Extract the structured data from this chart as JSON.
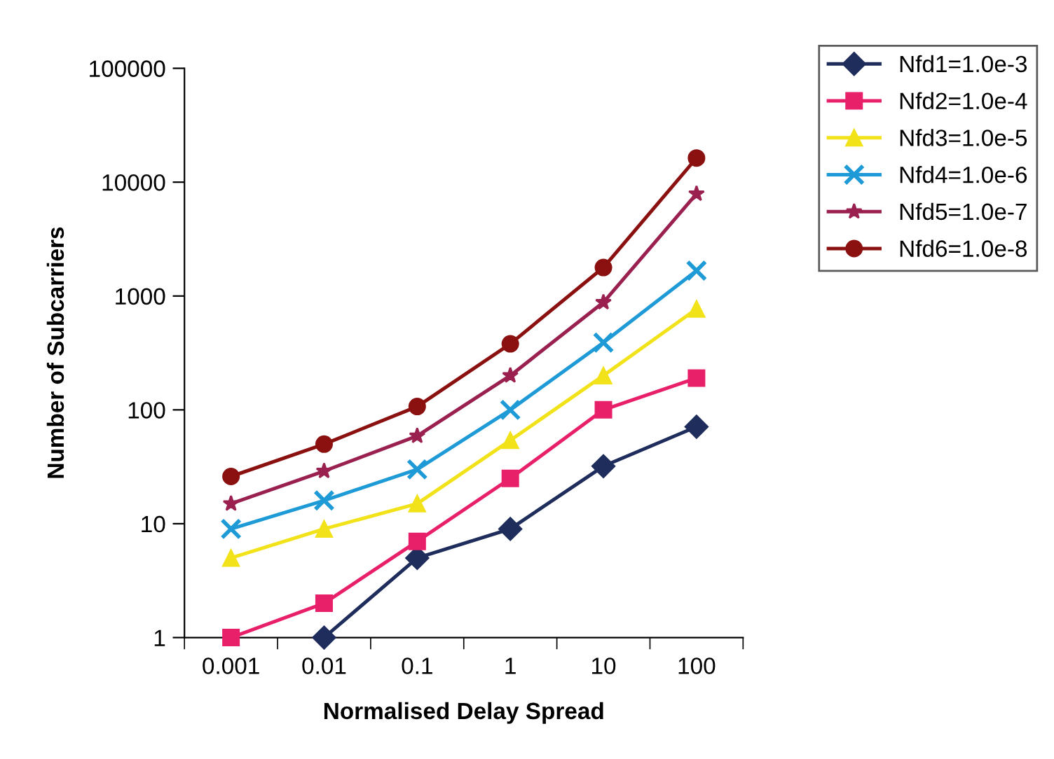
{
  "chart_data": {
    "type": "line",
    "xlabel": "Normalised Delay Spread",
    "ylabel": "Number of Subcarriers",
    "categories": [
      "0.001",
      "0.01",
      "0.1",
      "1",
      "10",
      "100"
    ],
    "series": [
      {
        "name": "Nfd1=1.0e-3",
        "color": "#1f2d5c",
        "marker": "diamond",
        "values": [
          null,
          1,
          5,
          9,
          32,
          71
        ]
      },
      {
        "name": "Nfd2=1.0e-4",
        "color": "#e8206a",
        "marker": "square",
        "values": [
          1,
          2,
          7,
          25,
          100,
          190
        ]
      },
      {
        "name": "Nfd3=1.0e-5",
        "color": "#f2e21a",
        "marker": "triangle",
        "values": [
          5,
          9,
          15,
          54,
          200,
          770
        ]
      },
      {
        "name": "Nfd4=1.0e-6",
        "color": "#1e9ad6",
        "marker": "cross",
        "values": [
          9,
          16,
          30,
          100,
          390,
          1670
        ]
      },
      {
        "name": "Nfd5=1.0e-7",
        "color": "#9a2050",
        "marker": "star",
        "values": [
          15,
          29,
          59,
          200,
          880,
          7900
        ]
      },
      {
        "name": "Nfd6=1.0e-8",
        "color": "#8b1010",
        "marker": "circle",
        "values": [
          26,
          50,
          107,
          380,
          1780,
          16300
        ]
      }
    ],
    "log": "y",
    "ylim": [
      1,
      100000
    ],
    "yticks": [
      1,
      10,
      100,
      1000,
      10000,
      100000
    ],
    "grid": false,
    "legend": "top right",
    "line_style": "solid"
  }
}
